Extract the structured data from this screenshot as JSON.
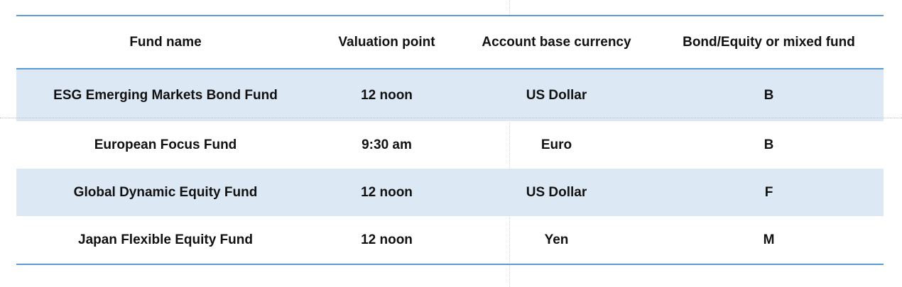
{
  "table": {
    "headers": [
      "Fund name",
      "Valuation point",
      "Account base currency",
      "Bond/Equity or mixed fund"
    ],
    "rows": [
      [
        "ESG Emerging Markets Bond Fund",
        "12 noon",
        "US Dollar",
        "B"
      ],
      [
        "European Focus Fund",
        "9:30 am",
        "Euro",
        "B"
      ],
      [
        "Global Dynamic Equity Fund",
        "12 noon",
        "US Dollar",
        "F"
      ],
      [
        "Japan Flexible Equity Fund",
        "12 noon",
        "Yen",
        "M"
      ]
    ]
  },
  "colors": {
    "rule": "#5b9bd5",
    "shaded_row": "#dde8f5",
    "text": "#111111"
  }
}
